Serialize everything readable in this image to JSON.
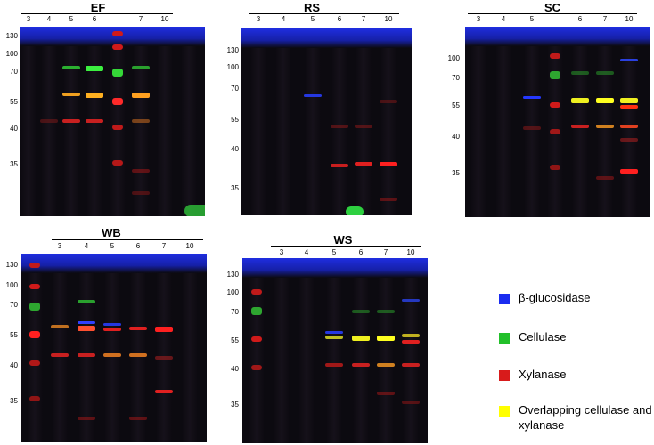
{
  "colors": {
    "beta_glucosidase": "#1a2cf0",
    "cellulase": "#22c02a",
    "xylanase": "#d81b1b",
    "overlap": "#ffff00"
  },
  "panels": [
    {
      "id": "EF",
      "title": "EF",
      "lanes": [
        "3",
        "4",
        "5",
        "6",
        "7",
        "10"
      ],
      "mw": [
        "130",
        "100",
        "70",
        "55",
        "40",
        "35"
      ]
    },
    {
      "id": "RS",
      "title": "RS",
      "lanes": [
        "3",
        "4",
        "5",
        "6",
        "7",
        "10"
      ],
      "mw": [
        "130",
        "100",
        "70",
        "55",
        "40",
        "35"
      ]
    },
    {
      "id": "SC",
      "title": "SC",
      "lanes": [
        "3",
        "4",
        "5",
        "6",
        "7",
        "10"
      ],
      "mw": [
        "100",
        "70",
        "55",
        "40",
        "35"
      ]
    },
    {
      "id": "WB",
      "title": "WB",
      "lanes": [
        "3",
        "4",
        "5",
        "6",
        "7",
        "10"
      ],
      "mw": [
        "130",
        "100",
        "70",
        "55",
        "40",
        "35"
      ]
    },
    {
      "id": "WS",
      "title": "WS",
      "lanes": [
        "3",
        "4",
        "5",
        "6",
        "7",
        "10"
      ],
      "mw": [
        "130",
        "100",
        "70",
        "55",
        "40",
        "35"
      ]
    }
  ],
  "legend": [
    {
      "label": "β-glucosidase",
      "color": "#1a2cf0"
    },
    {
      "label": "Cellulase",
      "color": "#22c02a"
    },
    {
      "label": "Xylanase",
      "color": "#d81b1b"
    },
    {
      "label": "Overlapping cellulase and xylanase",
      "color": "#ffff00"
    }
  ]
}
